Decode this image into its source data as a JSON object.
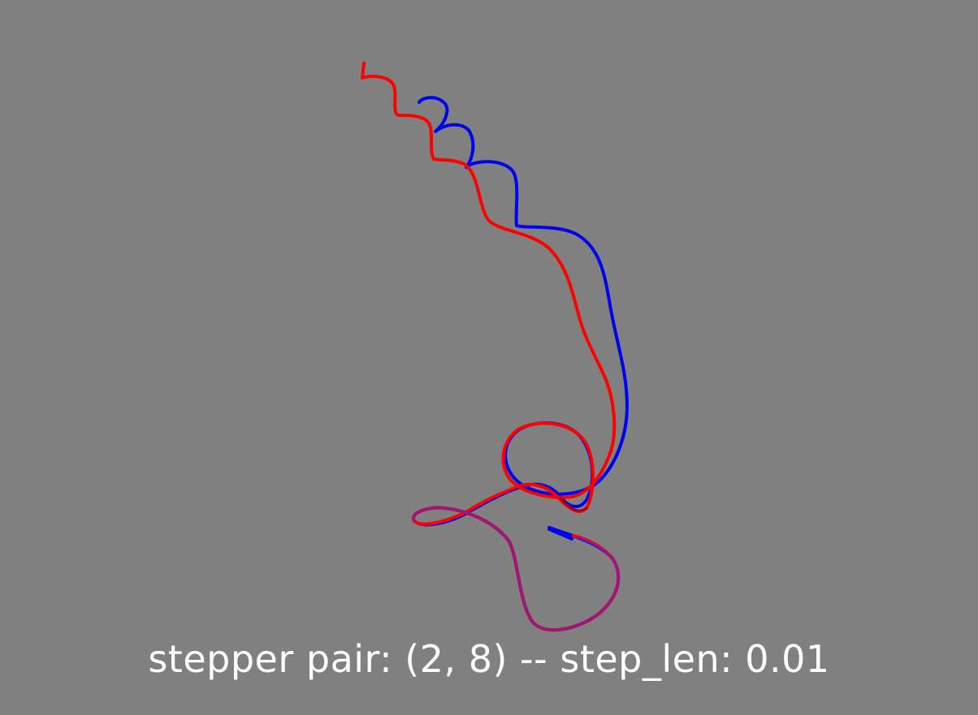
{
  "caption": "stepper pair: (2, 8) -- step_len: 0.01",
  "colors": {
    "background": "#808080",
    "trajectory_a": "#ff0000",
    "trajectory_b": "#0000ee",
    "caption": "#ffffff"
  }
}
